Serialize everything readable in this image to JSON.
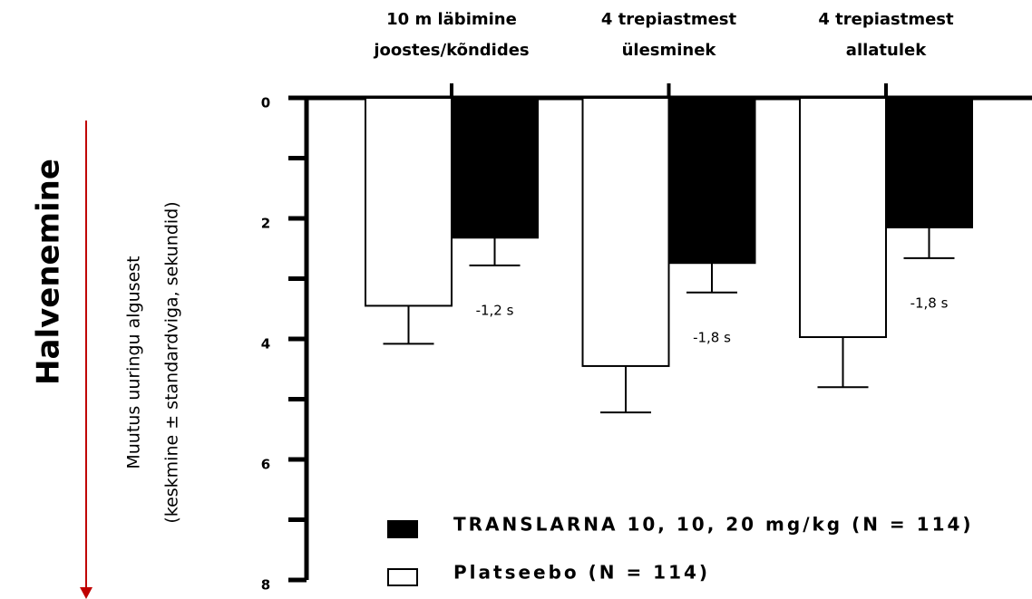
{
  "chart_data": {
    "type": "bar",
    "ylabel": [
      "Muutus uuringu algusest",
      "(keskmine ± standardviga, sekundid)"
    ],
    "side_label": "Halvenemine",
    "categories": [
      [
        "10 m läbimine",
        "joostes/kõndides"
      ],
      [
        "4 trepiastmest",
        "ülesminek"
      ],
      [
        "4 trepiastmest",
        "allatulek"
      ]
    ],
    "series": [
      {
        "name": "Platseebo (N = 114)",
        "color": "#ffffff",
        "values": [
          3.45,
          4.45,
          3.97
        ],
        "errors": [
          0.63,
          0.77,
          0.83
        ]
      },
      {
        "name": "TRANSLARNA 10, 10, 20 mg/kg (N = 114)",
        "color": "#000000",
        "values": [
          2.32,
          2.74,
          2.15
        ],
        "errors": [
          0.46,
          0.49,
          0.51
        ]
      }
    ],
    "annotations": [
      "-1,2 s",
      "-1,8 s",
      "-1,8 s"
    ],
    "ylim": [
      0,
      8
    ],
    "yticks": [
      0,
      2,
      4,
      6,
      8
    ],
    "yminorticks": [
      1,
      3,
      5,
      7
    ],
    "y_inverted": true
  }
}
